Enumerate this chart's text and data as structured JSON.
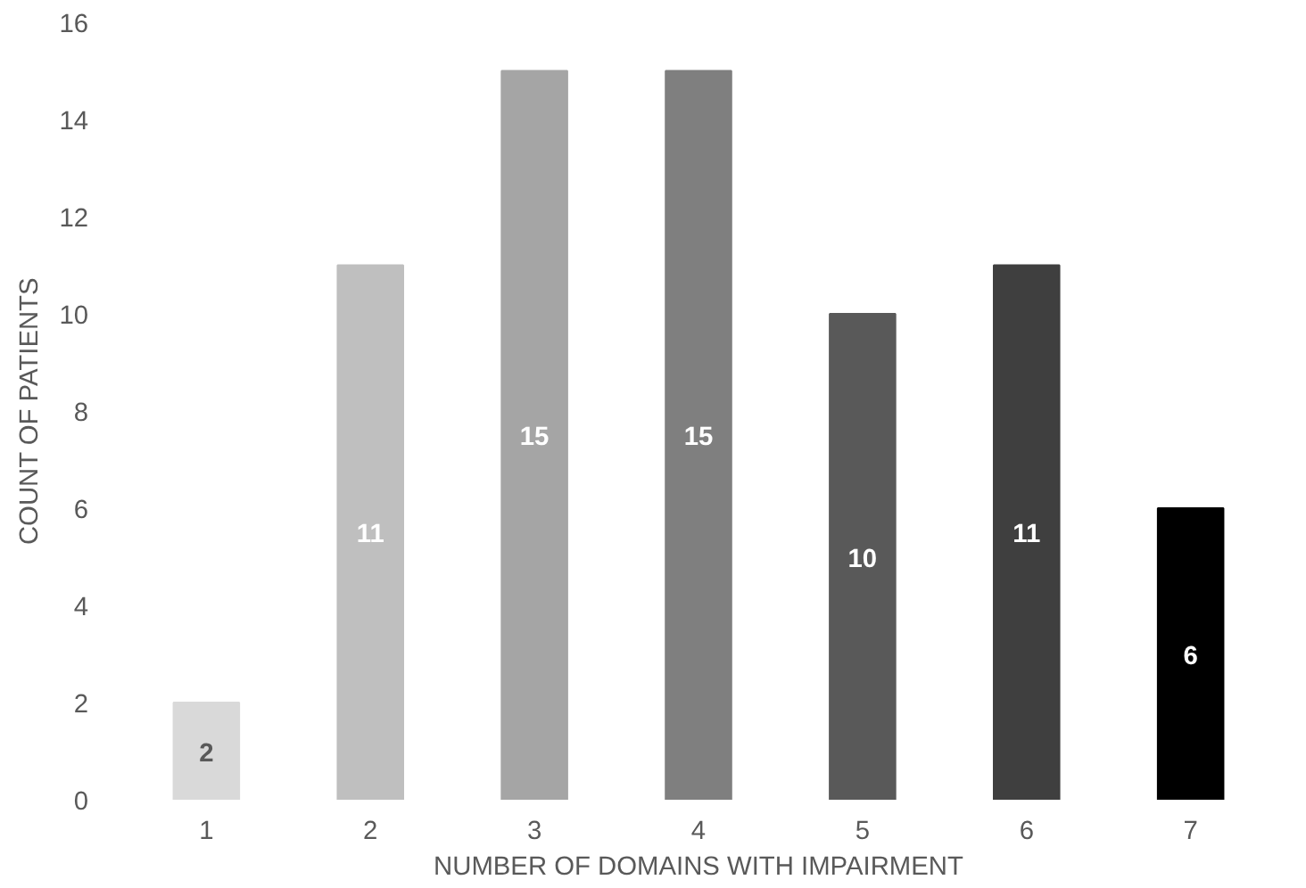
{
  "chart_data": {
    "type": "bar",
    "xlabel": "NUMBER OF DOMAINS WITH IMPAIRMENT",
    "ylabel": "COUNT OF PATIENTS",
    "categories": [
      "1",
      "2",
      "3",
      "4",
      "5",
      "6",
      "7"
    ],
    "values": [
      2,
      11,
      15,
      15,
      10,
      11,
      6
    ],
    "colors": [
      "#d9d9d9",
      "#bfbfbf",
      "#a5a5a5",
      "#7f7f7f",
      "#595959",
      "#3f3f3f",
      "#000000"
    ],
    "ylim": [
      0,
      16
    ],
    "yticks": [
      0,
      2,
      4,
      6,
      8,
      10,
      12,
      14,
      16
    ],
    "grid": false,
    "data_labels": true
  }
}
